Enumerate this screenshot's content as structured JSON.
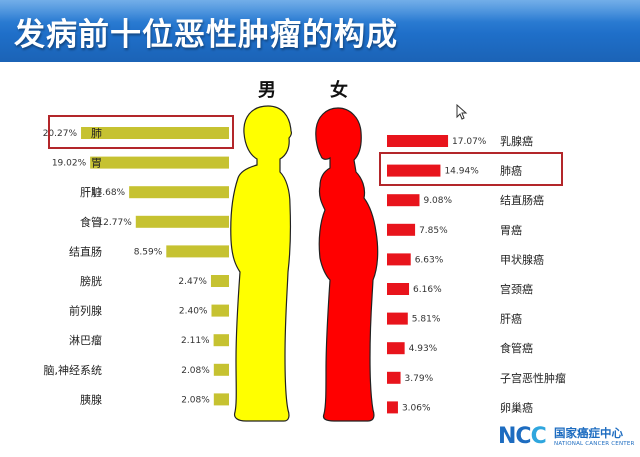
{
  "title": "发病前十位恶性肿瘤的构成",
  "male_label": "男",
  "female_label": "女",
  "chart_data": [
    {
      "type": "bar",
      "series_side": "male",
      "categories": [
        "肺",
        "胃",
        "肝脏",
        "食管",
        "结直肠",
        "膀胱",
        "前列腺",
        "淋巴瘤",
        "脑,神经系统",
        "胰腺"
      ],
      "values": [
        20.27,
        19.02,
        13.68,
        12.77,
        8.59,
        2.47,
        2.4,
        2.11,
        2.08,
        2.08
      ],
      "value_labels": [
        "20.27%",
        "19.02%",
        "13.68%",
        "12.77%",
        "8.59%",
        "2.47%",
        "2.40%",
        "2.11%",
        "2.08%",
        "2.08%"
      ],
      "color": "#c6c231",
      "highlighted": [
        "肺"
      ]
    },
    {
      "type": "bar",
      "series_side": "female",
      "categories": [
        "乳腺癌",
        "肺癌",
        "结直肠癌",
        "胃癌",
        "甲状腺癌",
        "宫颈癌",
        "肝癌",
        "食管癌",
        "子宫恶性肿瘤",
        "卵巢癌"
      ],
      "values": [
        17.07,
        14.94,
        9.08,
        7.85,
        6.63,
        6.16,
        5.81,
        4.93,
        3.79,
        3.06
      ],
      "value_labels": [
        "17.07%",
        "14.94%",
        "9.08%",
        "7.85%",
        "6.63%",
        "6.16%",
        "5.81%",
        "4.93%",
        "3.79%",
        "3.06%"
      ],
      "color": "#e8141c",
      "highlighted": [
        "肺癌"
      ]
    }
  ],
  "colors": {
    "header": "#1f6fc9",
    "male_body": "#ffff00",
    "female_body": "#ff0000",
    "highlight_box": "#b3262a"
  },
  "logo": {
    "mark": "NCC",
    "name_cn": "国家癌症中心",
    "name_en": "NATIONAL CANCER CENTER"
  },
  "icons": [
    "cursor-icon"
  ]
}
